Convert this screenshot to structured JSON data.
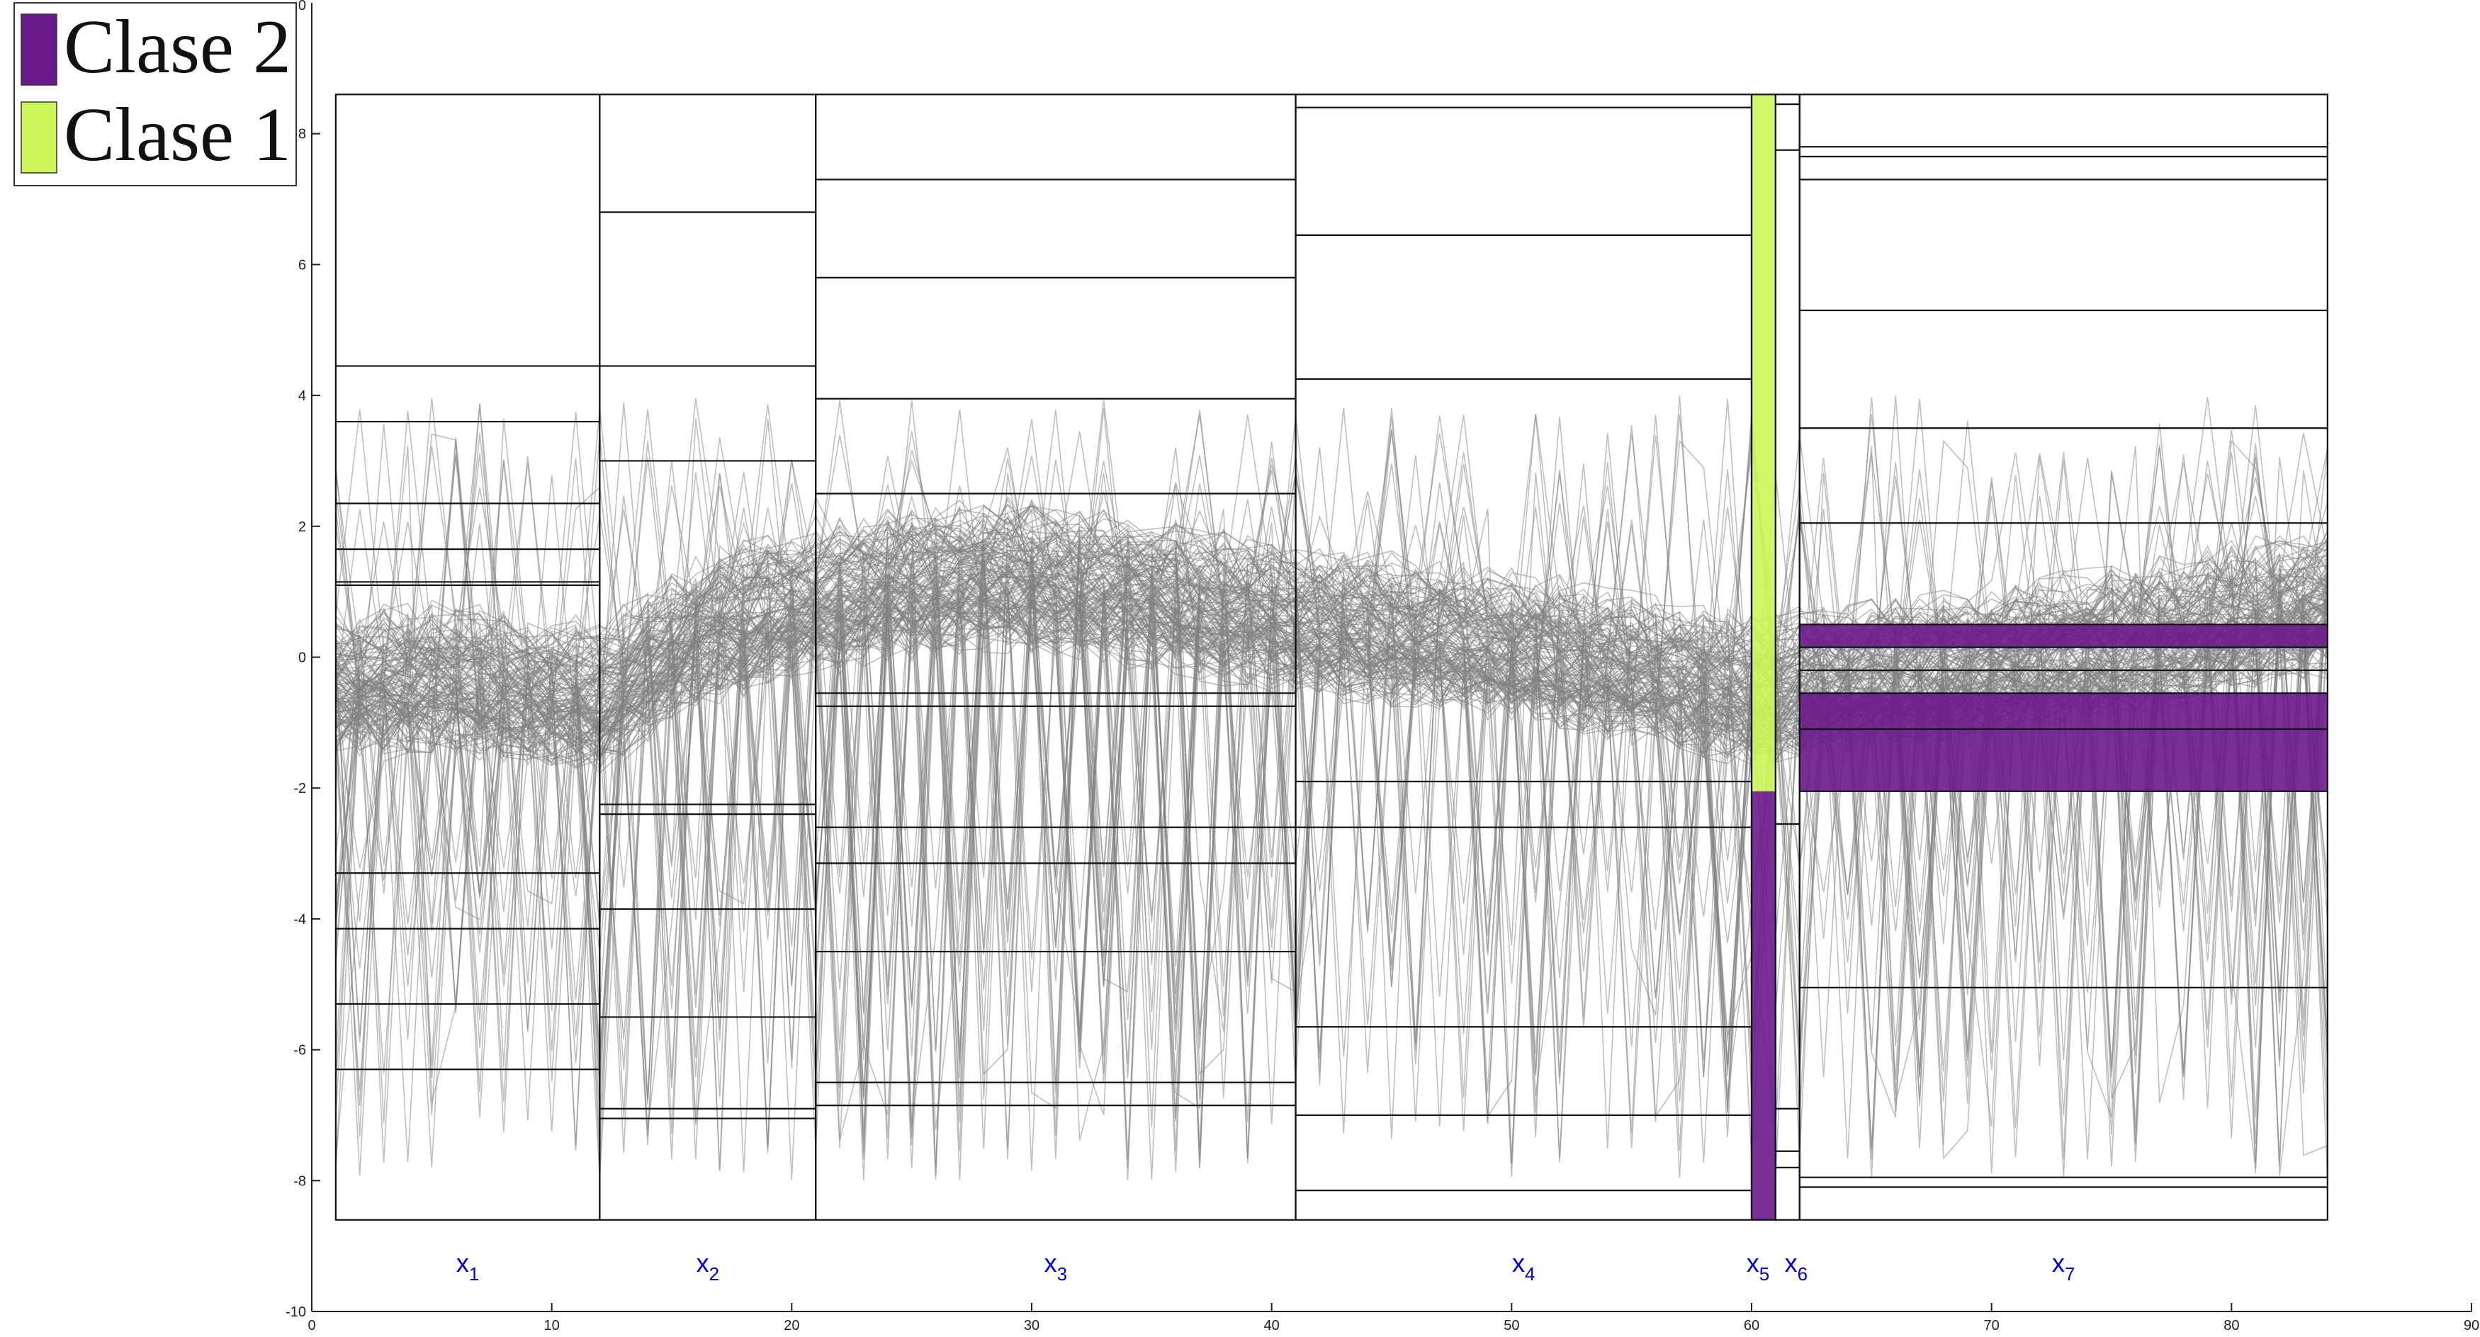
{
  "chart_data": {
    "type": "line",
    "title": "",
    "xlabel": "",
    "ylabel": "",
    "xlim": [
      0,
      90
    ],
    "ylim": [
      -10,
      10
    ],
    "x_ticks": [
      0,
      10,
      20,
      30,
      40,
      50,
      60,
      70,
      80,
      90
    ],
    "y_ticks": [
      -10,
      -8,
      -6,
      -4,
      -2,
      0,
      2,
      4,
      6,
      8
    ],
    "y_tick_labels": [
      "-10",
      "-8",
      "-6",
      "-4",
      "-2",
      "0",
      "2",
      "4",
      "6",
      "8"
    ],
    "y_top_label": "0",
    "panel_y_range": [
      -8.6,
      8.6
    ],
    "line_color": "#808080",
    "legend": {
      "placement": "top-left",
      "entries": [
        {
          "label": "Clase 2",
          "color": "#6a1a8a"
        },
        {
          "label": "Clase 1",
          "color": "#ccf55a"
        }
      ]
    },
    "variables": [
      {
        "name": "x",
        "sub": "1",
        "x_start": 1,
        "x_end": 12,
        "thresholds": [
          4.45,
          3.6,
          2.35,
          1.65,
          1.15,
          1.1,
          -3.3,
          -4.15,
          -5.3,
          -6.3
        ]
      },
      {
        "name": "x",
        "sub": "2",
        "x_start": 12,
        "x_end": 21,
        "thresholds": [
          6.8,
          4.45,
          3.0,
          -2.25,
          -2.4,
          -3.85,
          -5.5,
          -6.9,
          -7.05
        ]
      },
      {
        "name": "x",
        "sub": "3",
        "x_start": 21,
        "x_end": 41,
        "thresholds": [
          7.3,
          5.8,
          3.95,
          2.5,
          -0.55,
          -0.75,
          -2.6,
          -3.15,
          -4.5,
          -6.5,
          -6.85
        ]
      },
      {
        "name": "x",
        "sub": "4",
        "x_start": 41,
        "x_end": 60,
        "thresholds": [
          8.4,
          6.45,
          4.25,
          -1.9,
          -2.6,
          -5.65,
          -7.0,
          -8.15
        ]
      },
      {
        "name": "x",
        "sub": "5",
        "x_start": 60,
        "x_end": 61,
        "thresholds": []
      },
      {
        "name": "x",
        "sub": "6",
        "x_start": 61,
        "x_end": 62,
        "thresholds": [
          8.45,
          7.75,
          -2.55,
          -6.9,
          -7.55,
          -7.8
        ]
      },
      {
        "name": "x",
        "sub": "7",
        "x_start": 62,
        "x_end": 84,
        "thresholds": [
          7.8,
          7.65,
          7.3,
          5.3,
          3.5,
          2.05,
          0.5,
          0.15,
          -0.2,
          -0.55,
          -1.1,
          -2.05,
          -5.05,
          -7.95,
          -8.1
        ]
      }
    ],
    "class_bars": [
      {
        "class": "Clase 1",
        "color": "#ccf55a",
        "x_start": 60,
        "x_end": 61,
        "y_from": -2.05,
        "y_to": 8.6
      },
      {
        "class": "Clase 2",
        "color": "#6a1a8a",
        "x_start": 60,
        "x_end": 61,
        "y_from": -8.6,
        "y_to": -2.05
      },
      {
        "class": "Clase 2",
        "color": "#6a1a8a",
        "x_start": 62,
        "x_end": 84,
        "y_from": 0.15,
        "y_to": 0.5
      },
      {
        "class": "Clase 2",
        "color": "#6a1a8a",
        "x_start": 62,
        "x_end": 84,
        "y_from": -2.05,
        "y_to": -0.55
      }
    ],
    "series_summary": {
      "description_points": [
        [
          1,
          -0.4
        ],
        [
          6,
          -0.3
        ],
        [
          12,
          -0.6
        ],
        [
          16,
          0.4
        ],
        [
          21,
          0.9
        ],
        [
          28,
          1.3
        ],
        [
          35,
          1.0
        ],
        [
          41,
          0.6
        ],
        [
          50,
          0.2
        ],
        [
          60,
          -0.5
        ],
        [
          62,
          -0.4
        ],
        [
          70,
          0.0
        ],
        [
          78,
          0.4
        ],
        [
          84,
          0.9
        ]
      ]
    }
  }
}
